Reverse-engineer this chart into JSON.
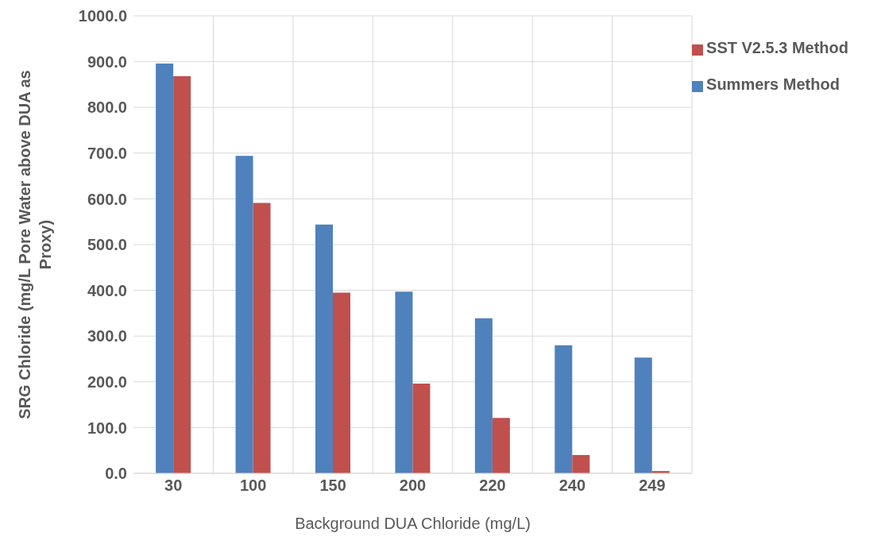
{
  "chart_data": {
    "type": "bar",
    "xlabel": "Background DUA Chloride (mg/L)",
    "ylabel": "SRG Chloride (mg/L Pore Water above DUA as Proxy)",
    "categories": [
      "30",
      "100",
      "150",
      "200",
      "220",
      "240",
      "249"
    ],
    "series": [
      {
        "name": "Summers Method",
        "color": "#4f81bd",
        "values": [
          896,
          694,
          544,
          397,
          339,
          280,
          253
        ]
      },
      {
        "name": "SST V2.5.3 Method",
        "color": "#c0504d",
        "values": [
          868,
          591,
          395,
          196,
          121,
          40,
          5
        ]
      }
    ],
    "ylim": [
      0,
      1000
    ],
    "yticks": [
      {
        "value": 0,
        "label": "0.0"
      },
      {
        "value": 100,
        "label": "100.0"
      },
      {
        "value": 200,
        "label": "200.0"
      },
      {
        "value": 300,
        "label": "300.0"
      },
      {
        "value": 400,
        "label": "400.0"
      },
      {
        "value": 500,
        "label": "500.0"
      },
      {
        "value": 600,
        "label": "600.0"
      },
      {
        "value": 700,
        "label": "700.0"
      },
      {
        "value": 800,
        "label": "800.0"
      },
      {
        "value": 900,
        "label": "900.0"
      },
      {
        "value": 1000,
        "label": "1000.0"
      }
    ],
    "grid": true,
    "legend": "top right"
  }
}
